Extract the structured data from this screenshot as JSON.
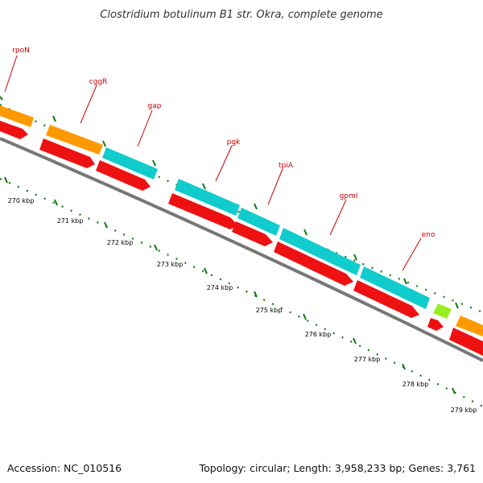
{
  "title": "Clostridium botulinum B1 str. Okra, complete genome",
  "footer": {
    "accession": "Accession: NC_010516",
    "topology": "Topology: circular; Length: 3,958,233 bp; Genes: 3,761"
  },
  "colors": {
    "gene_label": "#cc0000",
    "cds": "#ee1111",
    "orange_feature": "#ff9900",
    "cyan_feature": "#11cccc",
    "lime_feature": "#99ee22",
    "backbone": "#777777",
    "tick": "#117711"
  },
  "gene_labels": [
    "rpoN",
    "cggR",
    "gap",
    "pgk",
    "tpiA",
    "gpmI",
    "eno"
  ],
  "scale_labels": [
    "270 kbp",
    "271 kbp",
    "272 kbp",
    "273 kbp",
    "274 kbp",
    "275 kbp",
    "276 kbp",
    "277 kbp",
    "278 kbp",
    "279 kbp"
  ]
}
